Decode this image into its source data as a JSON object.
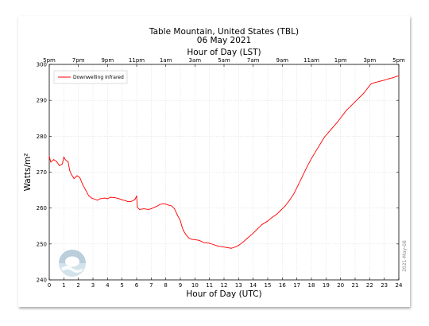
{
  "chart_data": {
    "type": "line",
    "title": "Table Mountain, United States (TBL)",
    "subtitle": "06 May 2021",
    "top_axis_label": "Hour of Day (LST)",
    "xlabel": "Hour of Day (UTC)",
    "ylabel": "Watts/m²",
    "xlim": [
      0,
      24
    ],
    "ylim": [
      240,
      300
    ],
    "x_ticks": [
      0,
      1,
      2,
      3,
      4,
      5,
      6,
      7,
      8,
      9,
      10,
      11,
      12,
      13,
      14,
      15,
      16,
      17,
      18,
      19,
      20,
      21,
      22,
      23,
      24
    ],
    "y_ticks": [
      240,
      250,
      260,
      270,
      280,
      290,
      300
    ],
    "top_ticks": [
      "5pm",
      "7pm",
      "9pm",
      "11pm",
      "1am",
      "3am",
      "5am",
      "7am",
      "9am",
      "11am",
      "1pm",
      "3pm",
      "5pm"
    ],
    "grid": true,
    "legend_position": "top-left",
    "credit": "2021-May-08",
    "series": [
      {
        "name": "Downwelling Infrared",
        "color": "#ff0000",
        "points": [
          [
            0,
            274.5
          ],
          [
            0.1,
            272.8
          ],
          [
            0.3,
            273.5
          ],
          [
            0.5,
            273
          ],
          [
            0.7,
            271.8
          ],
          [
            0.9,
            272.3
          ],
          [
            1.0,
            274.2
          ],
          [
            1.1,
            273.5
          ],
          [
            1.3,
            272.8
          ],
          [
            1.4,
            270.5
          ],
          [
            1.5,
            269.5
          ],
          [
            1.7,
            268.2
          ],
          [
            1.9,
            269
          ],
          [
            2.1,
            268.5
          ],
          [
            2.3,
            266.5
          ],
          [
            2.5,
            265
          ],
          [
            2.7,
            263.5
          ],
          [
            2.9,
            262.8
          ],
          [
            3.1,
            262.5
          ],
          [
            3.3,
            262.2
          ],
          [
            3.5,
            262.6
          ],
          [
            3.8,
            262.8
          ],
          [
            4.0,
            262.6
          ],
          [
            4.2,
            263
          ],
          [
            4.5,
            262.9
          ],
          [
            4.8,
            262.6
          ],
          [
            5.0,
            262.3
          ],
          [
            5.2,
            262.1
          ],
          [
            5.4,
            261.8
          ],
          [
            5.6,
            261.8
          ],
          [
            5.8,
            262.2
          ],
          [
            5.9,
            262.5
          ],
          [
            6.0,
            263.4
          ],
          [
            6.05,
            260.2
          ],
          [
            6.2,
            259.6
          ],
          [
            6.5,
            259.8
          ],
          [
            6.8,
            259.6
          ],
          [
            7.0,
            259.8
          ],
          [
            7.2,
            260.2
          ],
          [
            7.4,
            260.5
          ],
          [
            7.6,
            261
          ],
          [
            7.8,
            261.2
          ],
          [
            8.0,
            261.1
          ],
          [
            8.2,
            260.8
          ],
          [
            8.4,
            260.6
          ],
          [
            8.6,
            259.8
          ],
          [
            8.8,
            258
          ],
          [
            9.0,
            256.5
          ],
          [
            9.1,
            255
          ],
          [
            9.2,
            253.8
          ],
          [
            9.4,
            252.5
          ],
          [
            9.6,
            251.6
          ],
          [
            9.8,
            251.3
          ],
          [
            10.0,
            251.2
          ],
          [
            10.3,
            251
          ],
          [
            10.6,
            250.4
          ],
          [
            11.0,
            250.2
          ],
          [
            11.3,
            249.8
          ],
          [
            11.6,
            249.4
          ],
          [
            11.9,
            249.2
          ],
          [
            12.2,
            249
          ],
          [
            12.5,
            248.8
          ],
          [
            12.8,
            249.2
          ],
          [
            13.0,
            249.6
          ],
          [
            13.3,
            250.5
          ],
          [
            13.6,
            251.6
          ],
          [
            14.0,
            253
          ],
          [
            14.3,
            254.2
          ],
          [
            14.6,
            255.4
          ],
          [
            15.0,
            256.4
          ],
          [
            15.3,
            257.4
          ],
          [
            15.6,
            258.2
          ],
          [
            15.9,
            259.4
          ],
          [
            16.2,
            260.6
          ],
          [
            16.5,
            262.2
          ],
          [
            16.8,
            264
          ],
          [
            17.1,
            266.5
          ],
          [
            17.4,
            269
          ],
          [
            17.7,
            271.5
          ],
          [
            18.0,
            273.8
          ],
          [
            18.3,
            275.8
          ],
          [
            18.6,
            277.8
          ],
          [
            18.9,
            279.8
          ],
          [
            19.2,
            281.2
          ],
          [
            19.5,
            282.6
          ],
          [
            19.8,
            284
          ],
          [
            20.1,
            285.6
          ],
          [
            20.4,
            287.2
          ],
          [
            20.7,
            288.4
          ],
          [
            21.0,
            289.6
          ],
          [
            21.3,
            290.8
          ],
          [
            21.6,
            292
          ],
          [
            21.9,
            293.6
          ],
          [
            22.1,
            294.6
          ],
          [
            22.4,
            295
          ],
          [
            22.7,
            295.3
          ],
          [
            23.0,
            295.6
          ],
          [
            23.3,
            296
          ],
          [
            23.6,
            296.3
          ],
          [
            23.8,
            296.6
          ],
          [
            24.0,
            296.8
          ]
        ]
      }
    ]
  }
}
